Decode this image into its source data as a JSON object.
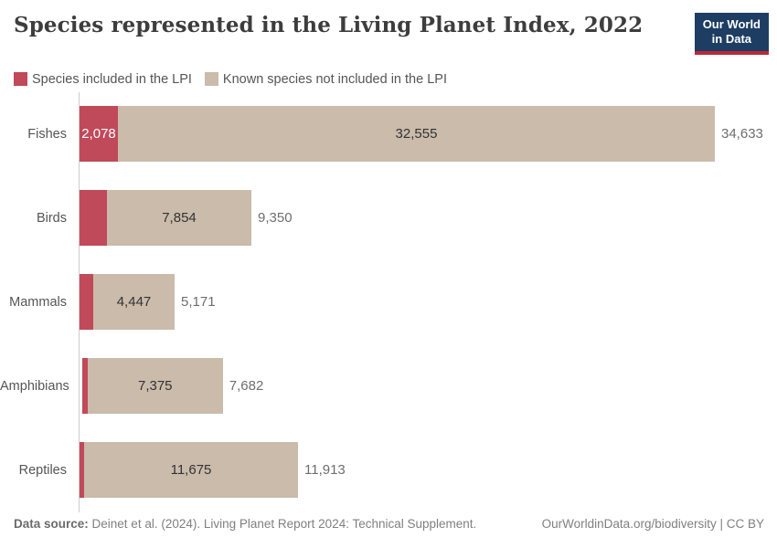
{
  "header": {
    "title": "Species represented in the Living Planet Index, 2022",
    "logo_line1": "Our World",
    "logo_line2": "in Data"
  },
  "legend": [
    {
      "label": "Species included in the LPI",
      "color": "#c0495a"
    },
    {
      "label": "Known species not included in the LPI",
      "color": "#cabbab"
    }
  ],
  "chart_data": {
    "type": "bar",
    "orientation": "horizontal",
    "stacked": true,
    "title": "Species represented in the Living Planet Index, 2022",
    "categories": [
      "Fishes",
      "Birds",
      "Mammals",
      "Amphibians",
      "Reptiles"
    ],
    "series": [
      {
        "name": "Species included in the LPI",
        "color": "#c0495a",
        "values": [
          2078,
          1496,
          724,
          307,
          238
        ]
      },
      {
        "name": "Known species not included in the LPI",
        "color": "#cabbab",
        "values": [
          32555,
          7854,
          4447,
          7375,
          11675
        ]
      }
    ],
    "totals": [
      34633,
      9350,
      5171,
      7682,
      11913
    ],
    "labels": {
      "included": [
        "2,078",
        "",
        "",
        "",
        ""
      ],
      "not_included": [
        "32,555",
        "7,854",
        "4,447",
        "7,375",
        "11,675"
      ],
      "totals": [
        "34,633",
        "9,350",
        "5,171",
        "7,682",
        "11,913"
      ]
    },
    "xmax": 34633,
    "xlabel": "",
    "ylabel": "",
    "grid": false,
    "legend_position": "top"
  },
  "footer": {
    "source_prefix": "Data source:",
    "source_text": " Deinet et al. (2024). Living Planet Report 2024: Technical Supplement.",
    "credit": "OurWorldinData.org/biodiversity | CC BY"
  }
}
